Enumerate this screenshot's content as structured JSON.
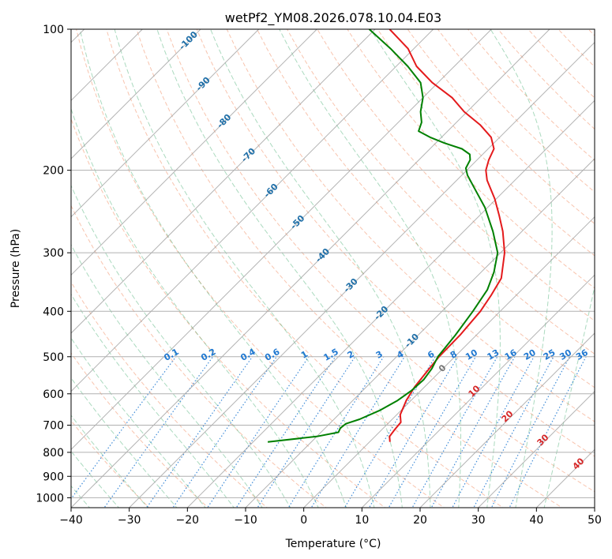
{
  "chart_data": {
    "type": "line",
    "title": "wetPf2_YM08.2026.078.10.04.E03",
    "xlabel": "Temperature (°C)",
    "ylabel": "Pressure (hPa)",
    "xlim": [
      -40,
      50
    ],
    "ylim": [
      1050,
      100
    ],
    "y_scale": "log",
    "x_ticks": [
      -40,
      -30,
      -20,
      -10,
      0,
      10,
      20,
      30,
      40,
      50
    ],
    "y_ticks": [
      1000,
      900,
      800,
      700,
      600,
      500,
      400,
      300,
      200,
      100
    ],
    "skew": "skew-T log-p",
    "colors": {
      "temperature": "#e41a1c",
      "dewpoint": "#008000",
      "isotherm": "#9a9a9a",
      "dry_adiabat": "#f4a582",
      "moist_adiabat": "#2ca25f",
      "mixing_ratio": "#1f78d1",
      "dry_adiabat_label": "#d62728",
      "moist_label": "#1f6fa8",
      "freezing_label": "#777777"
    },
    "series": [
      {
        "name": "Temperature",
        "points": [
          {
            "p": 760,
            "t": 3.5
          },
          {
            "p": 740,
            "t": 2.5
          },
          {
            "p": 715,
            "t": 2.2
          },
          {
            "p": 690,
            "t": 2.0
          },
          {
            "p": 665,
            "t": 0.6
          },
          {
            "p": 620,
            "t": -0.8
          },
          {
            "p": 580,
            "t": -1.7
          },
          {
            "p": 540,
            "t": -2.2
          },
          {
            "p": 500,
            "t": -2.7
          },
          {
            "p": 450,
            "t": -2.8
          },
          {
            "p": 400,
            "t": -3.4
          },
          {
            "p": 370,
            "t": -4.3
          },
          {
            "p": 340,
            "t": -5.5
          },
          {
            "p": 300,
            "t": -9.3
          },
          {
            "p": 270,
            "t": -13.3
          },
          {
            "p": 250,
            "t": -16.6
          },
          {
            "p": 230,
            "t": -20.3
          },
          {
            "p": 210,
            "t": -24.8
          },
          {
            "p": 200,
            "t": -26.7
          },
          {
            "p": 190,
            "t": -28.0
          },
          {
            "p": 180,
            "t": -29.0
          },
          {
            "p": 170,
            "t": -31.5
          },
          {
            "p": 160,
            "t": -35.5
          },
          {
            "p": 150,
            "t": -40.5
          },
          {
            "p": 140,
            "t": -45.0
          },
          {
            "p": 130,
            "t": -51.0
          },
          {
            "p": 120,
            "t": -56.5
          },
          {
            "p": 110,
            "t": -61.0
          },
          {
            "p": 100,
            "t": -67.5
          }
        ]
      },
      {
        "name": "Dewpoint",
        "points": [
          {
            "p": 760,
            "t": -17.5
          },
          {
            "p": 740,
            "t": -10.0
          },
          {
            "p": 725,
            "t": -7.0
          },
          {
            "p": 710,
            "t": -7.4
          },
          {
            "p": 695,
            "t": -7.2
          },
          {
            "p": 680,
            "t": -5.6
          },
          {
            "p": 650,
            "t": -3.6
          },
          {
            "p": 620,
            "t": -2.3
          },
          {
            "p": 590,
            "t": -1.6
          },
          {
            "p": 560,
            "t": -1.4
          },
          {
            "p": 530,
            "t": -1.9
          },
          {
            "p": 500,
            "t": -2.9
          },
          {
            "p": 450,
            "t": -3.6
          },
          {
            "p": 400,
            "t": -4.7
          },
          {
            "p": 360,
            "t": -5.9
          },
          {
            "p": 330,
            "t": -7.8
          },
          {
            "p": 300,
            "t": -10.5
          },
          {
            "p": 270,
            "t": -15.0
          },
          {
            "p": 240,
            "t": -20.5
          },
          {
            "p": 220,
            "t": -25.2
          },
          {
            "p": 205,
            "t": -29.0
          },
          {
            "p": 198,
            "t": -30.5
          },
          {
            "p": 190,
            "t": -31.2
          },
          {
            "p": 185,
            "t": -32.2
          },
          {
            "p": 180,
            "t": -34.5
          },
          {
            "p": 175,
            "t": -38.5
          },
          {
            "p": 170,
            "t": -42.0
          },
          {
            "p": 165,
            "t": -45.0
          },
          {
            "p": 158,
            "t": -46.0
          },
          {
            "p": 150,
            "t": -48.0
          },
          {
            "p": 140,
            "t": -50.0
          },
          {
            "p": 130,
            "t": -53.0
          },
          {
            "p": 120,
            "t": -58.0
          },
          {
            "p": 110,
            "t": -64.0
          },
          {
            "p": 100,
            "t": -71.0
          }
        ]
      }
    ],
    "moist_adiabat_labels": [
      "-100",
      "-90",
      "-80",
      "-70",
      "-60",
      "-50",
      "-40",
      "-30",
      "-20",
      "-10",
      "0"
    ],
    "mixing_ratio_labels": [
      "0.1",
      "0.2",
      "0.4",
      "0.6",
      "1",
      "1.5",
      "2",
      "3",
      "4",
      "6",
      "8",
      "10",
      "13",
      "16",
      "20",
      "25",
      "30",
      "36"
    ],
    "dry_adiabat_labels": [
      "10",
      "20",
      "30",
      "40"
    ]
  }
}
